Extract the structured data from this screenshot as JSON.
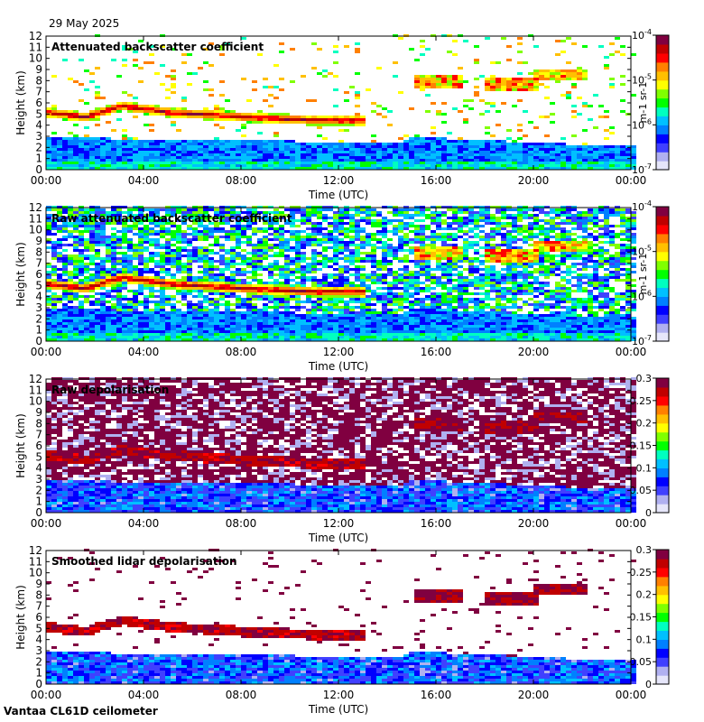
{
  "date": "29 May 2025",
  "footer": "Vantaa CL61D ceilometer",
  "chart_data": [
    {
      "type": "heatmap",
      "title": "Attenuated backscatter coefficient",
      "xlabel": "Time (UTC)",
      "ylabel": "Height (km)",
      "x_ticks": [
        "00:00",
        "04:00",
        "08:00",
        "12:00",
        "16:00",
        "20:00",
        "00:00"
      ],
      "xlim_hours": [
        0,
        24
      ],
      "ylim": [
        0,
        12
      ],
      "y_ticks": [
        0,
        1,
        2,
        3,
        4,
        5,
        6,
        7,
        8,
        9,
        10,
        11,
        12
      ],
      "colorbar": {
        "scale": "log",
        "ticks": [
          "10^-7",
          "10^-6",
          "10^-5",
          "10^-4"
        ],
        "label": "m-1 sr-1"
      },
      "features": {
        "boundary_layer_top_km": [
          [
            0,
            2.8
          ],
          [
            6,
            2.5
          ],
          [
            12,
            2.4
          ],
          [
            14.5,
            2.3
          ],
          [
            15,
            2.8
          ],
          [
            18,
            2.5
          ],
          [
            21,
            2.2
          ],
          [
            24,
            2.0
          ]
        ],
        "cloud_layer_km": [
          [
            0,
            5.0
          ],
          [
            1.5,
            4.6
          ],
          [
            3,
            5.6
          ],
          [
            5,
            5.0
          ],
          [
            8,
            4.6
          ],
          [
            11,
            4.3
          ],
          [
            13,
            4.3
          ]
        ],
        "upper_clouds_km": [
          [
            16,
            7.8
          ],
          [
            19,
            7.5
          ],
          [
            21,
            8.4
          ]
        ],
        "noise": "low"
      }
    },
    {
      "type": "heatmap",
      "title": "Raw attenuated backscatter coefficient",
      "xlabel": "Time (UTC)",
      "ylabel": "Height (km)",
      "x_ticks": [
        "00:00",
        "04:00",
        "08:00",
        "12:00",
        "16:00",
        "20:00",
        "00:00"
      ],
      "xlim_hours": [
        0,
        24
      ],
      "ylim": [
        0,
        12
      ],
      "y_ticks": [
        0,
        1,
        2,
        3,
        4,
        5,
        6,
        7,
        8,
        9,
        10,
        11,
        12
      ],
      "colorbar": {
        "scale": "log",
        "ticks": [
          "10^-7",
          "10^-6",
          "10^-5",
          "10^-4"
        ],
        "label": "m-1 sr-1"
      },
      "features": {
        "noise": "high"
      }
    },
    {
      "type": "heatmap",
      "title": "Raw depolarisation",
      "xlabel": "Time (UTC)",
      "ylabel": "Height (km)",
      "x_ticks": [
        "00:00",
        "04:00",
        "08:00",
        "12:00",
        "16:00",
        "20:00",
        "00:00"
      ],
      "xlim_hours": [
        0,
        24
      ],
      "ylim": [
        0,
        12
      ],
      "y_ticks": [
        0,
        1,
        2,
        3,
        4,
        5,
        6,
        7,
        8,
        9,
        10,
        11,
        12
      ],
      "colorbar": {
        "scale": "linear",
        "ticks": [
          "0",
          "0.05",
          "0.1",
          "0.15",
          "0.2",
          "0.25",
          "0.3"
        ],
        "range": [
          0,
          0.3
        ]
      },
      "features": {
        "noise": "saturated"
      }
    },
    {
      "type": "heatmap",
      "title": "Smoothed lidar depolarisation",
      "xlabel": "Time (UTC)",
      "ylabel": "Height (km)",
      "x_ticks": [
        "00:00",
        "04:00",
        "08:00",
        "12:00",
        "16:00",
        "20:00",
        "00:00"
      ],
      "xlim_hours": [
        0,
        24
      ],
      "ylim": [
        0,
        12
      ],
      "y_ticks": [
        0,
        1,
        2,
        3,
        4,
        5,
        6,
        7,
        8,
        9,
        10,
        11,
        12
      ],
      "colorbar": {
        "scale": "linear",
        "ticks": [
          "0",
          "0.05",
          "0.1",
          "0.15",
          "0.2",
          "0.25",
          "0.3"
        ],
        "range": [
          0,
          0.3
        ]
      },
      "features": {
        "noise": "sparse"
      }
    }
  ],
  "colors": {
    "colormap": [
      "#e6e6fa",
      "#b0b0f0",
      "#4040ff",
      "#0000ff",
      "#0080ff",
      "#00c0ff",
      "#00ffc0",
      "#00ff00",
      "#80ff00",
      "#ffff00",
      "#ffc000",
      "#ff8000",
      "#ff0000",
      "#c00000",
      "#800040"
    ]
  }
}
